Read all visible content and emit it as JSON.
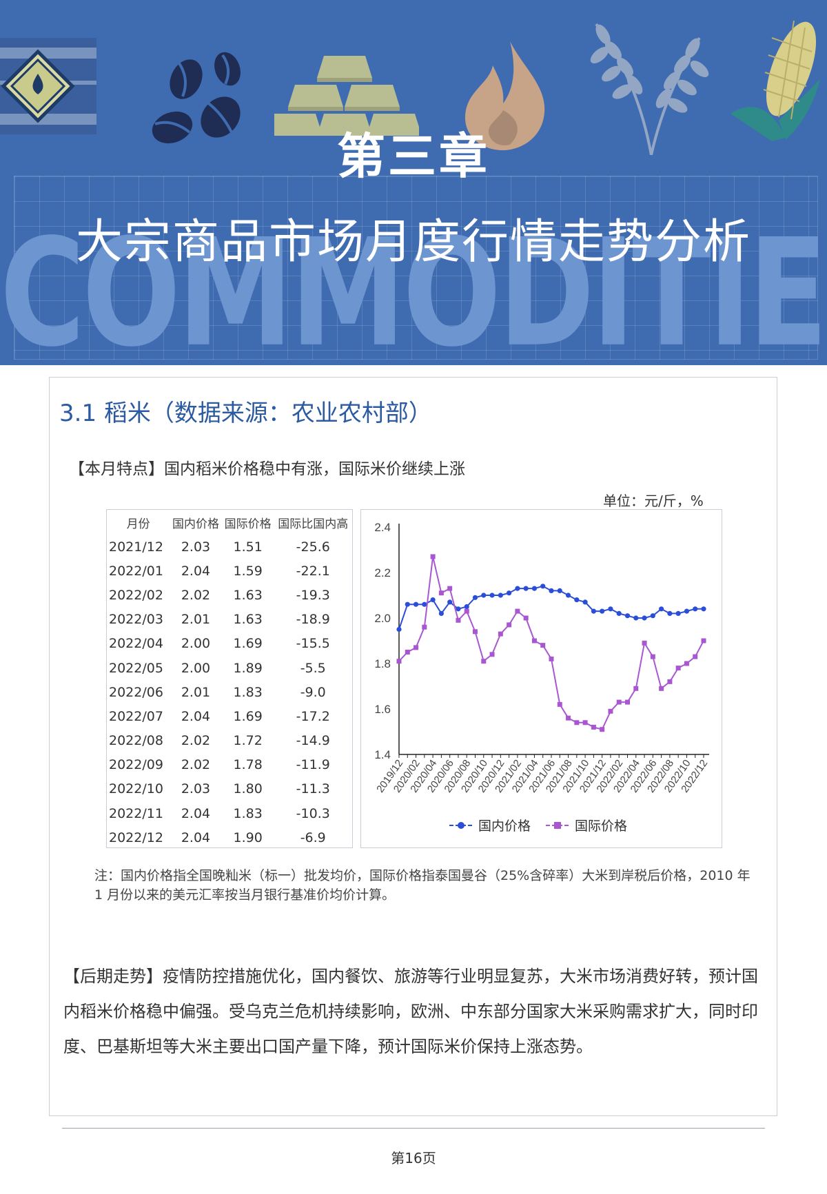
{
  "banner": {
    "chapter": "第三章",
    "title": "大宗商品市场月度行情走势分析",
    "watermark": "COMMODITIES",
    "icons": [
      "oil-barrel-icon",
      "coffee-beans-icon",
      "gold-bars-icon",
      "gas-flame-icon",
      "wheat-icon",
      "corn-icon"
    ]
  },
  "section": {
    "title": "3.1 稻米（数据来源：农业农村部）",
    "feature": "【本月特点】国内稻米价格稳中有涨，国际米价继续上涨",
    "unit": "单位：元/斤，%"
  },
  "table": {
    "headers": [
      "月份",
      "国内价格",
      "国际价格",
      "国际比国内高"
    ],
    "rows": [
      [
        "2021/12",
        "2.03",
        "1.51",
        "-25.6"
      ],
      [
        "2022/01",
        "2.04",
        "1.59",
        "-22.1"
      ],
      [
        "2022/02",
        "2.02",
        "1.63",
        "-19.3"
      ],
      [
        "2022/03",
        "2.01",
        "1.63",
        "-18.9"
      ],
      [
        "2022/04",
        "2.00",
        "1.69",
        "-15.5"
      ],
      [
        "2022/05",
        "2.00",
        "1.89",
        "-5.5"
      ],
      [
        "2022/06",
        "2.01",
        "1.83",
        "-9.0"
      ],
      [
        "2022/07",
        "2.04",
        "1.69",
        "-17.2"
      ],
      [
        "2022/08",
        "2.02",
        "1.72",
        "-14.9"
      ],
      [
        "2022/09",
        "2.02",
        "1.78",
        "-11.9"
      ],
      [
        "2022/10",
        "2.03",
        "1.80",
        "-11.3"
      ],
      [
        "2022/11",
        "2.04",
        "1.83",
        "-10.3"
      ],
      [
        "2022/12",
        "2.04",
        "1.90",
        "-6.9"
      ]
    ]
  },
  "chart_data": {
    "type": "line",
    "x": [
      "2019/12",
      "2020/01",
      "2020/02",
      "2020/03",
      "2020/04",
      "2020/05",
      "2020/06",
      "2020/07",
      "2020/08",
      "2020/09",
      "2020/10",
      "2020/11",
      "2020/12",
      "2021/01",
      "2021/02",
      "2021/03",
      "2021/04",
      "2021/05",
      "2021/06",
      "2021/07",
      "2021/08",
      "2021/09",
      "2021/10",
      "2021/11",
      "2021/12",
      "2022/01",
      "2022/02",
      "2022/03",
      "2022/04",
      "2022/05",
      "2022/06",
      "2022/07",
      "2022/08",
      "2022/09",
      "2022/10",
      "2022/11",
      "2022/12"
    ],
    "x_tick_labels": [
      "2019/12",
      "2020/02",
      "2020/04",
      "2020/06",
      "2020/08",
      "2020/10",
      "2020/12",
      "2021/02",
      "2021/04",
      "2021/06",
      "2021/08",
      "2021/10",
      "2021/12",
      "2022/02",
      "2022/04",
      "2022/06",
      "2022/08",
      "2022/10",
      "2022/12"
    ],
    "series": [
      {
        "name": "国内价格",
        "color": "#2b4ed8",
        "marker": "circle",
        "values": [
          1.95,
          2.06,
          2.06,
          2.06,
          2.08,
          2.02,
          2.07,
          2.04,
          2.05,
          2.09,
          2.1,
          2.1,
          2.1,
          2.11,
          2.13,
          2.13,
          2.13,
          2.14,
          2.12,
          2.12,
          2.1,
          2.08,
          2.07,
          2.03,
          2.03,
          2.04,
          2.02,
          2.01,
          2.0,
          2.0,
          2.01,
          2.04,
          2.02,
          2.02,
          2.03,
          2.04,
          2.04
        ]
      },
      {
        "name": "国际价格",
        "color": "#a957d1",
        "marker": "square",
        "values": [
          1.81,
          1.85,
          1.87,
          1.96,
          2.27,
          2.11,
          2.13,
          1.99,
          2.03,
          1.94,
          1.81,
          1.84,
          1.93,
          1.97,
          2.03,
          2.0,
          1.9,
          1.88,
          1.82,
          1.62,
          1.56,
          1.54,
          1.54,
          1.52,
          1.51,
          1.59,
          1.63,
          1.63,
          1.69,
          1.89,
          1.83,
          1.69,
          1.72,
          1.78,
          1.8,
          1.83,
          1.9
        ]
      }
    ],
    "ylim": [
      1.4,
      2.4
    ],
    "yticks": [
      2.4,
      2.2,
      2.0,
      1.8,
      1.6,
      1.4
    ],
    "legend_position": "bottom",
    "grid": false
  },
  "note": "注：国内价格指全国晚籼米（标一）批发均价，国际价格指泰国曼谷（25%含碎率）大米到岸税后价格，2010 年 1 月份以来的美元汇率按当月银行基准价均价计算。",
  "outlook": "【后期走势】疫情防控措施优化，国内餐饮、旅游等行业明显复苏，大米市场消费好转，预计国内稻米价格稳中偏强。受乌克兰危机持续影响，欧洲、中东部分国家大米采购需求扩大，同时印度、巴基斯坦等大米主要出口国产量下降，预计国际米价保持上涨态势。",
  "footer": {
    "page": "第16页"
  }
}
